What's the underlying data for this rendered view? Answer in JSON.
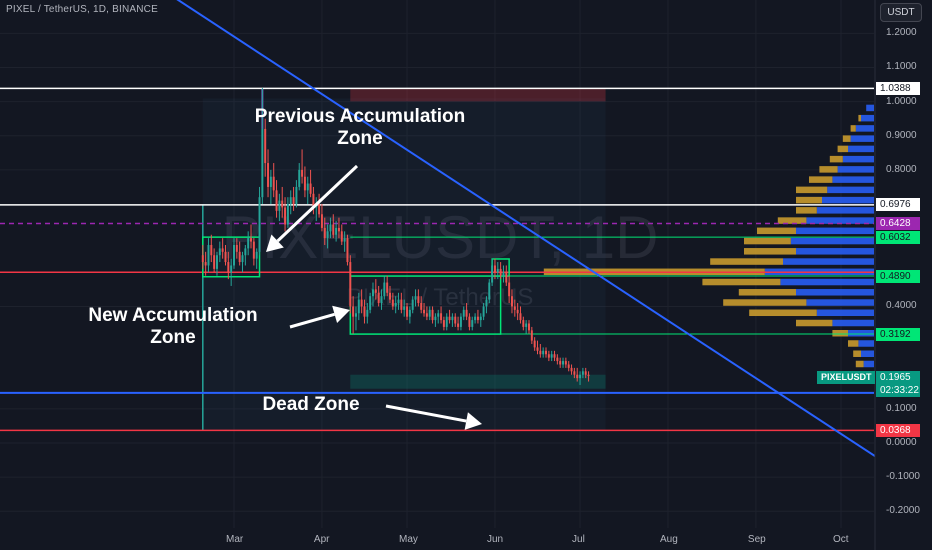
{
  "header": {
    "symbol_info": "PIXEL / TetherUS, 1D, BINANCE",
    "currency_button": "USDT"
  },
  "watermark": {
    "main": "PIXELUSDT, 1D",
    "sub": "PIXEL / TetherUS"
  },
  "annotations": {
    "previous_zone": "Previous Accumulation\nZone",
    "new_zone": "New Accumulation\nZone",
    "dead_zone": "Dead Zone"
  },
  "ticker": {
    "name": "PIXELUSDT",
    "price": "0.1965",
    "countdown": "02:33:22"
  },
  "colors": {
    "background": "#131722",
    "trendline": "#2962ff",
    "up": "#26a69a",
    "down": "#ef5350",
    "profile_blue": "#2962ff",
    "profile_gold": "#c99a2e",
    "zone_green": "#00e676",
    "accent_red": "#f23645",
    "accent_magenta": "#9c27b0"
  },
  "chart_data": {
    "type": "candlestick",
    "ylim": [
      -0.23,
      1.28
    ],
    "y_ticks": [
      "1.2000",
      "1.1000",
      "1.0000",
      "0.9000",
      "0.8000",
      "0.4000",
      "0.1000",
      "0.0000",
      "-0.1000",
      "-0.2000"
    ],
    "y_tick_values": [
      1.2,
      1.1,
      1.0,
      0.9,
      0.8,
      0.4,
      0.1,
      0.0,
      -0.1,
      -0.2
    ],
    "x_ticks": [
      "Mar",
      "Apr",
      "May",
      "Jun",
      "Jul",
      "Aug",
      "Sep",
      "Oct"
    ],
    "x_tick_dates": [
      "2024-03-01",
      "2024-04-01",
      "2024-05-01",
      "2024-06-01",
      "2024-07-01",
      "2024-08-01",
      "2024-09-01",
      "2024-10-01"
    ],
    "price_labels": [
      {
        "text": "1.0388",
        "value": 1.0388,
        "style": "white"
      },
      {
        "text": "0.6976",
        "value": 0.6976,
        "style": "white"
      },
      {
        "text": "0.6428",
        "value": 0.6428,
        "style": "magenta"
      },
      {
        "text": "0.6032",
        "value": 0.6032,
        "style": "green"
      },
      {
        "text": "0.4890",
        "value": 0.489,
        "style": "green"
      },
      {
        "text": "0.3192",
        "value": 0.3192,
        "style": "green"
      },
      {
        "text": "0.0368",
        "value": 0.0368,
        "style": "red"
      }
    ],
    "horizontal_lines": [
      {
        "value": 1.0388,
        "color": "#ffffff"
      },
      {
        "value": 0.6976,
        "color": "#ffffff"
      },
      {
        "value": 0.6428,
        "color": "#9c27b0",
        "dash": true
      },
      {
        "value": 0.5,
        "color": "#f23645"
      },
      {
        "value": 0.1468,
        "color": "#2962ff"
      },
      {
        "value": 0.0368,
        "color": "#f23645"
      }
    ],
    "trendline": {
      "start": {
        "date": "2024-01-28",
        "value": 1.37
      },
      "end": {
        "date": "2024-10-28",
        "value": -0.12
      }
    },
    "zones": [
      {
        "name": "previous",
        "start": "2024-02-19",
        "end": "2024-03-10",
        "low": 0.487,
        "high": 0.603
      },
      {
        "name": "new",
        "start": "2024-04-11",
        "end": "2024-06-03",
        "low": 0.319,
        "high": 0.489
      },
      {
        "name": "breakout",
        "start": "2024-05-31",
        "end": "2024-06-06",
        "low": 0.489,
        "high": 0.539
      }
    ],
    "candles": [
      [
        "2024-02-19",
        0.55,
        0.58,
        0.51,
        0.53
      ],
      [
        "2024-02-20",
        0.53,
        0.56,
        0.49,
        0.52
      ],
      [
        "2024-02-21",
        0.52,
        0.6,
        0.5,
        0.58
      ],
      [
        "2024-02-22",
        0.58,
        0.61,
        0.53,
        0.55
      ],
      [
        "2024-02-23",
        0.55,
        0.57,
        0.5,
        0.51
      ],
      [
        "2024-02-24",
        0.51,
        0.56,
        0.49,
        0.55
      ],
      [
        "2024-02-25",
        0.55,
        0.59,
        0.53,
        0.57
      ],
      [
        "2024-02-26",
        0.57,
        0.6,
        0.54,
        0.56
      ],
      [
        "2024-02-27",
        0.56,
        0.58,
        0.52,
        0.53
      ],
      [
        "2024-02-28",
        0.53,
        0.56,
        0.48,
        0.5
      ],
      [
        "2024-02-29",
        0.5,
        0.54,
        0.46,
        0.52
      ],
      [
        "2024-03-01",
        0.52,
        0.6,
        0.51,
        0.58
      ],
      [
        "2024-03-02",
        0.58,
        0.6,
        0.54,
        0.56
      ],
      [
        "2024-03-03",
        0.56,
        0.59,
        0.52,
        0.53
      ],
      [
        "2024-03-04",
        0.53,
        0.56,
        0.5,
        0.55
      ],
      [
        "2024-03-05",
        0.55,
        0.58,
        0.52,
        0.57
      ],
      [
        "2024-03-06",
        0.57,
        0.62,
        0.55,
        0.6
      ],
      [
        "2024-03-07",
        0.6,
        0.64,
        0.57,
        0.59
      ],
      [
        "2024-03-08",
        0.59,
        0.6,
        0.52,
        0.54
      ],
      [
        "2024-03-09",
        0.54,
        0.57,
        0.51,
        0.56
      ],
      [
        "2024-03-10",
        0.56,
        0.75,
        0.55,
        0.72
      ],
      [
        "2024-03-11",
        0.72,
        1.04,
        0.7,
        0.92
      ],
      [
        "2024-03-12",
        0.92,
        0.95,
        0.78,
        0.82
      ],
      [
        "2024-03-13",
        0.82,
        0.86,
        0.72,
        0.75
      ],
      [
        "2024-03-14",
        0.75,
        0.8,
        0.7,
        0.78
      ],
      [
        "2024-03-15",
        0.78,
        0.82,
        0.72,
        0.74
      ],
      [
        "2024-03-16",
        0.74,
        0.77,
        0.66,
        0.68
      ],
      [
        "2024-03-17",
        0.68,
        0.73,
        0.65,
        0.71
      ],
      [
        "2024-03-18",
        0.71,
        0.75,
        0.66,
        0.69
      ],
      [
        "2024-03-19",
        0.69,
        0.72,
        0.62,
        0.64
      ],
      [
        "2024-03-20",
        0.64,
        0.72,
        0.63,
        0.7
      ],
      [
        "2024-03-21",
        0.7,
        0.74,
        0.67,
        0.72
      ],
      [
        "2024-03-22",
        0.72,
        0.75,
        0.68,
        0.7
      ],
      [
        "2024-03-23",
        0.7,
        0.77,
        0.69,
        0.75
      ],
      [
        "2024-03-24",
        0.75,
        0.82,
        0.74,
        0.8
      ],
      [
        "2024-03-25",
        0.8,
        0.86,
        0.76,
        0.78
      ],
      [
        "2024-03-26",
        0.78,
        0.81,
        0.72,
        0.74
      ],
      [
        "2024-03-27",
        0.74,
        0.78,
        0.7,
        0.76
      ],
      [
        "2024-03-28",
        0.76,
        0.8,
        0.72,
        0.73
      ],
      [
        "2024-03-29",
        0.73,
        0.75,
        0.67,
        0.69
      ],
      [
        "2024-03-30",
        0.69,
        0.72,
        0.65,
        0.7
      ],
      [
        "2024-03-31",
        0.7,
        0.73,
        0.66,
        0.67
      ],
      [
        "2024-04-01",
        0.67,
        0.7,
        0.62,
        0.63
      ],
      [
        "2024-04-02",
        0.63,
        0.66,
        0.58,
        0.6
      ],
      [
        "2024-04-03",
        0.6,
        0.64,
        0.57,
        0.62
      ],
      [
        "2024-04-04",
        0.62,
        0.66,
        0.6,
        0.64
      ],
      [
        "2024-04-05",
        0.64,
        0.67,
        0.6,
        0.61
      ],
      [
        "2024-04-06",
        0.61,
        0.65,
        0.59,
        0.63
      ],
      [
        "2024-04-07",
        0.63,
        0.66,
        0.6,
        0.62
      ],
      [
        "2024-04-08",
        0.62,
        0.64,
        0.58,
        0.59
      ],
      [
        "2024-04-09",
        0.59,
        0.62,
        0.56,
        0.6
      ],
      [
        "2024-04-10",
        0.6,
        0.61,
        0.52,
        0.53
      ],
      [
        "2024-04-11",
        0.53,
        0.55,
        0.38,
        0.4
      ],
      [
        "2024-04-12",
        0.4,
        0.43,
        0.32,
        0.37
      ],
      [
        "2024-04-13",
        0.37,
        0.4,
        0.33,
        0.38
      ],
      [
        "2024-04-14",
        0.38,
        0.44,
        0.36,
        0.42
      ],
      [
        "2024-04-15",
        0.42,
        0.45,
        0.38,
        0.4
      ],
      [
        "2024-04-16",
        0.4,
        0.42,
        0.35,
        0.37
      ],
      [
        "2024-04-17",
        0.37,
        0.41,
        0.35,
        0.39
      ],
      [
        "2024-04-18",
        0.39,
        0.44,
        0.38,
        0.43
      ],
      [
        "2024-04-19",
        0.43,
        0.47,
        0.4,
        0.45
      ],
      [
        "2024-04-20",
        0.45,
        0.48,
        0.42,
        0.44
      ],
      [
        "2024-04-21",
        0.44,
        0.46,
        0.4,
        0.41
      ],
      [
        "2024-04-22",
        0.41,
        0.45,
        0.39,
        0.43
      ],
      [
        "2024-04-23",
        0.43,
        0.49,
        0.42,
        0.47
      ],
      [
        "2024-04-24",
        0.47,
        0.49,
        0.43,
        0.44
      ],
      [
        "2024-04-25",
        0.44,
        0.46,
        0.41,
        0.42
      ],
      [
        "2024-04-26",
        0.42,
        0.44,
        0.39,
        0.4
      ],
      [
        "2024-04-27",
        0.4,
        0.43,
        0.38,
        0.41
      ],
      [
        "2024-04-28",
        0.41,
        0.44,
        0.39,
        0.42
      ],
      [
        "2024-04-29",
        0.42,
        0.44,
        0.38,
        0.39
      ],
      [
        "2024-04-30",
        0.39,
        0.42,
        0.37,
        0.4
      ],
      [
        "2024-05-01",
        0.4,
        0.41,
        0.36,
        0.37
      ],
      [
        "2024-05-02",
        0.37,
        0.4,
        0.35,
        0.39
      ],
      [
        "2024-05-03",
        0.39,
        0.43,
        0.38,
        0.42
      ],
      [
        "2024-05-04",
        0.42,
        0.45,
        0.4,
        0.43
      ],
      [
        "2024-05-05",
        0.43,
        0.45,
        0.4,
        0.41
      ],
      [
        "2024-05-06",
        0.41,
        0.43,
        0.38,
        0.39
      ],
      [
        "2024-05-07",
        0.39,
        0.41,
        0.37,
        0.38
      ],
      [
        "2024-05-08",
        0.38,
        0.4,
        0.36,
        0.37
      ],
      [
        "2024-05-09",
        0.37,
        0.4,
        0.36,
        0.39
      ],
      [
        "2024-05-10",
        0.39,
        0.4,
        0.35,
        0.36
      ],
      [
        "2024-05-11",
        0.36,
        0.38,
        0.34,
        0.37
      ],
      [
        "2024-05-12",
        0.37,
        0.39,
        0.35,
        0.38
      ],
      [
        "2024-05-13",
        0.38,
        0.4,
        0.35,
        0.36
      ],
      [
        "2024-05-14",
        0.36,
        0.37,
        0.33,
        0.34
      ],
      [
        "2024-05-15",
        0.34,
        0.38,
        0.33,
        0.37
      ],
      [
        "2024-05-16",
        0.37,
        0.39,
        0.35,
        0.36
      ],
      [
        "2024-05-17",
        0.36,
        0.38,
        0.34,
        0.37
      ],
      [
        "2024-05-18",
        0.37,
        0.38,
        0.34,
        0.35
      ],
      [
        "2024-05-19",
        0.35,
        0.37,
        0.33,
        0.34
      ],
      [
        "2024-05-20",
        0.34,
        0.38,
        0.33,
        0.37
      ],
      [
        "2024-05-21",
        0.37,
        0.4,
        0.36,
        0.39
      ],
      [
        "2024-05-22",
        0.39,
        0.41,
        0.36,
        0.37
      ],
      [
        "2024-05-23",
        0.37,
        0.38,
        0.33,
        0.34
      ],
      [
        "2024-05-24",
        0.34,
        0.37,
        0.33,
        0.36
      ],
      [
        "2024-05-25",
        0.36,
        0.38,
        0.35,
        0.37
      ],
      [
        "2024-05-26",
        0.37,
        0.39,
        0.35,
        0.36
      ],
      [
        "2024-05-27",
        0.36,
        0.38,
        0.34,
        0.37
      ],
      [
        "2024-05-28",
        0.37,
        0.41,
        0.36,
        0.4
      ],
      [
        "2024-05-29",
        0.4,
        0.43,
        0.38,
        0.42
      ],
      [
        "2024-05-30",
        0.42,
        0.48,
        0.41,
        0.47
      ],
      [
        "2024-05-31",
        0.47,
        0.54,
        0.46,
        0.52
      ],
      [
        "2024-06-01",
        0.52,
        0.54,
        0.48,
        0.5
      ],
      [
        "2024-06-02",
        0.5,
        0.53,
        0.48,
        0.51
      ],
      [
        "2024-06-03",
        0.51,
        0.53,
        0.48,
        0.49
      ],
      [
        "2024-06-04",
        0.49,
        0.52,
        0.47,
        0.5
      ],
      [
        "2024-06-05",
        0.5,
        0.52,
        0.46,
        0.47
      ],
      [
        "2024-06-06",
        0.47,
        0.49,
        0.41,
        0.43
      ],
      [
        "2024-06-07",
        0.43,
        0.45,
        0.38,
        0.4
      ],
      [
        "2024-06-08",
        0.4,
        0.42,
        0.37,
        0.39
      ],
      [
        "2024-06-09",
        0.39,
        0.41,
        0.36,
        0.38
      ],
      [
        "2024-06-10",
        0.38,
        0.4,
        0.35,
        0.36
      ],
      [
        "2024-06-11",
        0.36,
        0.37,
        0.33,
        0.34
      ],
      [
        "2024-06-12",
        0.34,
        0.36,
        0.32,
        0.35
      ],
      [
        "2024-06-13",
        0.35,
        0.36,
        0.32,
        0.33
      ],
      [
        "2024-06-14",
        0.33,
        0.34,
        0.29,
        0.3
      ],
      [
        "2024-06-15",
        0.3,
        0.31,
        0.27,
        0.28
      ],
      [
        "2024-06-16",
        0.28,
        0.3,
        0.26,
        0.27
      ],
      [
        "2024-06-17",
        0.27,
        0.29,
        0.25,
        0.26
      ],
      [
        "2024-06-18",
        0.26,
        0.28,
        0.25,
        0.27
      ],
      [
        "2024-06-19",
        0.27,
        0.28,
        0.25,
        0.26
      ],
      [
        "2024-06-20",
        0.26,
        0.27,
        0.24,
        0.25
      ],
      [
        "2024-06-21",
        0.25,
        0.27,
        0.24,
        0.26
      ],
      [
        "2024-06-22",
        0.26,
        0.27,
        0.24,
        0.25
      ],
      [
        "2024-06-23",
        0.25,
        0.26,
        0.23,
        0.24
      ],
      [
        "2024-06-24",
        0.24,
        0.25,
        0.22,
        0.23
      ],
      [
        "2024-06-25",
        0.23,
        0.25,
        0.22,
        0.24
      ],
      [
        "2024-06-26",
        0.24,
        0.25,
        0.22,
        0.23
      ],
      [
        "2024-06-27",
        0.23,
        0.24,
        0.21,
        0.22
      ],
      [
        "2024-06-28",
        0.22,
        0.23,
        0.2,
        0.21
      ],
      [
        "2024-06-29",
        0.21,
        0.22,
        0.19,
        0.2
      ],
      [
        "2024-06-30",
        0.2,
        0.22,
        0.18,
        0.19
      ],
      [
        "2024-07-01",
        0.19,
        0.21,
        0.17,
        0.2
      ],
      [
        "2024-07-02",
        0.2,
        0.22,
        0.19,
        0.21
      ],
      [
        "2024-07-03",
        0.21,
        0.22,
        0.19,
        0.2
      ],
      [
        "2024-07-04",
        0.2,
        0.21,
        0.18,
        0.1965
      ]
    ],
    "volume_profile": [
      {
        "price": 0.98,
        "blue": 0.03,
        "gold": 0.0
      },
      {
        "price": 0.95,
        "blue": 0.05,
        "gold": 0.01
      },
      {
        "price": 0.92,
        "blue": 0.07,
        "gold": 0.02
      },
      {
        "price": 0.89,
        "blue": 0.09,
        "gold": 0.03
      },
      {
        "price": 0.86,
        "blue": 0.1,
        "gold": 0.04
      },
      {
        "price": 0.83,
        "blue": 0.12,
        "gold": 0.05
      },
      {
        "price": 0.8,
        "blue": 0.14,
        "gold": 0.07
      },
      {
        "price": 0.77,
        "blue": 0.16,
        "gold": 0.09
      },
      {
        "price": 0.74,
        "blue": 0.18,
        "gold": 0.12
      },
      {
        "price": 0.71,
        "blue": 0.2,
        "gold": 0.1
      },
      {
        "price": 0.68,
        "blue": 0.22,
        "gold": 0.08
      },
      {
        "price": 0.65,
        "blue": 0.26,
        "gold": 0.11
      },
      {
        "price": 0.62,
        "blue": 0.3,
        "gold": 0.15
      },
      {
        "price": 0.59,
        "blue": 0.32,
        "gold": 0.18
      },
      {
        "price": 0.56,
        "blue": 0.3,
        "gold": 0.2
      },
      {
        "price": 0.53,
        "blue": 0.35,
        "gold": 0.28
      },
      {
        "price": 0.5,
        "blue": 0.42,
        "gold": 0.85
      },
      {
        "price": 0.47,
        "blue": 0.36,
        "gold": 0.3
      },
      {
        "price": 0.44,
        "blue": 0.3,
        "gold": 0.22
      },
      {
        "price": 0.41,
        "blue": 0.26,
        "gold": 0.32
      },
      {
        "price": 0.38,
        "blue": 0.22,
        "gold": 0.26
      },
      {
        "price": 0.35,
        "blue": 0.16,
        "gold": 0.14
      },
      {
        "price": 0.32,
        "blue": 0.1,
        "gold": 0.06
      },
      {
        "price": 0.29,
        "blue": 0.06,
        "gold": 0.04
      },
      {
        "price": 0.26,
        "blue": 0.05,
        "gold": 0.03
      },
      {
        "price": 0.23,
        "blue": 0.04,
        "gold": 0.03
      }
    ]
  }
}
